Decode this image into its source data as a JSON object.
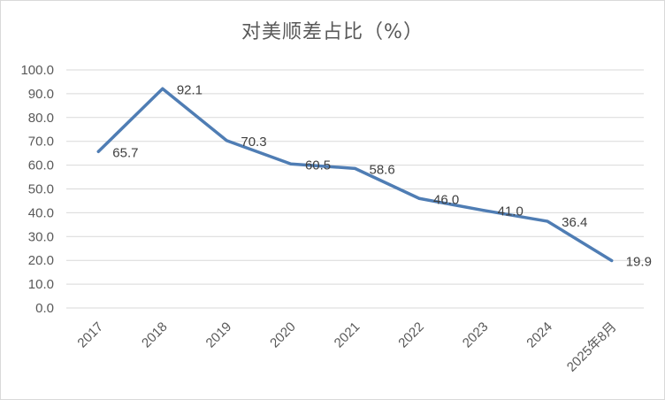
{
  "chart_data": {
    "type": "line",
    "title": "对美顺差占比（%）",
    "xlabel": "",
    "ylabel": "",
    "categories": [
      "2017",
      "2018",
      "2019",
      "2020",
      "2021",
      "2022",
      "2023",
      "2024",
      "2025年8月"
    ],
    "series": [
      {
        "values": [
          65.7,
          92.1,
          70.3,
          60.5,
          58.6,
          46.0,
          41.0,
          36.4,
          19.9
        ],
        "data_labels": [
          "65.7",
          "92.1",
          "70.3",
          "60.5",
          "58.6",
          "46.0",
          "41.0",
          "36.4",
          "19.9"
        ],
        "color": "#4f7db4"
      }
    ],
    "ylim": [
      0,
      100
    ],
    "yticks": [
      "0.0",
      "10.0",
      "20.0",
      "30.0",
      "40.0",
      "50.0",
      "60.0",
      "70.0",
      "80.0",
      "90.0",
      "100.0"
    ],
    "grid": true,
    "legend": "none",
    "colors": {
      "line": "#4f7db4",
      "grid": "#d9d9d9",
      "text": "#595959"
    }
  }
}
